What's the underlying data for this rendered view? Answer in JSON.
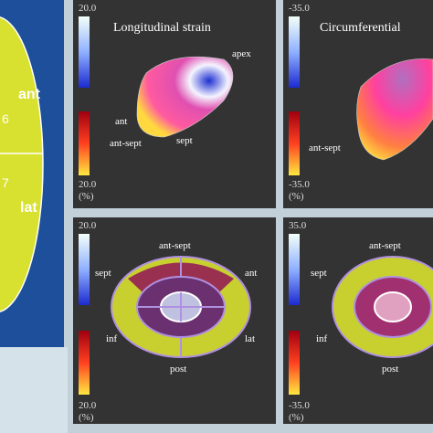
{
  "left_panel": {
    "labels": [
      "ant",
      "6",
      "7",
      "lat"
    ]
  },
  "panels": [
    {
      "title": "Longitudinal strain",
      "scale_top": "20.0",
      "scale_bottom": "20.0",
      "unit": "(%)",
      "labels": [
        "apex",
        "ant",
        "ant-sept",
        "sept"
      ]
    },
    {
      "title": "Circumferential",
      "scale_top": "-35.0",
      "scale_bottom": "-35.0",
      "unit": "(%)",
      "labels": [
        "ant-sept"
      ]
    },
    {
      "scale_top": "20.0",
      "scale_bottom": "20.0",
      "unit": "(%)",
      "labels": [
        "ant-sept",
        "sept",
        "ant",
        "inf",
        "lat",
        "post"
      ]
    },
    {
      "scale_top": "35.0",
      "scale_bottom": "-35.0",
      "unit": "(%)",
      "labels": [
        "ant-sept",
        "sept",
        "inf",
        "post"
      ]
    }
  ]
}
